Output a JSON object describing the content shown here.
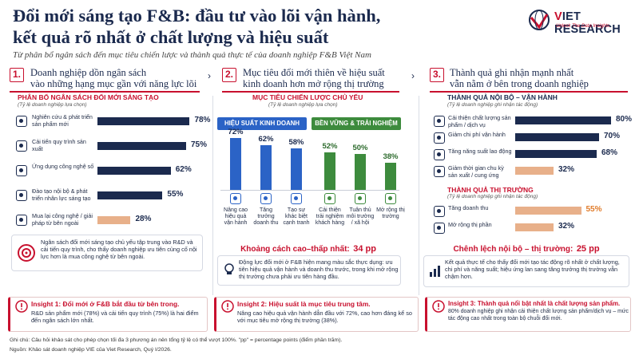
{
  "header": {
    "title_line1": "Đổi mới sáng tạo F&B: đầu tư vào lõi vận hành,",
    "title_line2": "kết quả rõ nhất ở chất lượng và hiệu suất",
    "subtitle": "Từ phân bổ ngân sách đến mục tiêu chiến lược và thành quả thực tế của doanh nghiệp F&B Việt Nam",
    "logo_v": "V",
    "logo_text": "IET RESEARCH",
    "logo_tagline": "Unlock The Data Insights"
  },
  "sections": [
    {
      "num": "1.",
      "line1": "Doanh nghiệp dồn ngân sách",
      "line2": "vào những hạng mục gần với năng lực lõi"
    },
    {
      "num": "2.",
      "line1": "Mục tiêu đổi mới thiên về hiệu suất",
      "line2": "kinh doanh hơn mở rộng thị trường"
    },
    {
      "num": "3.",
      "line1": "Thành quả ghi nhận mạnh nhất",
      "line2": "vẫn nằm ở bên trong doanh nghiệp"
    }
  ],
  "colors": {
    "navy": "#1b2a4e",
    "red": "#c8102e",
    "blue": "#2b63c6",
    "green": "#3d8b3d",
    "orange": "#e07b2a"
  },
  "chart_data": [
    {
      "type": "bar",
      "orientation": "horizontal",
      "title": "PHÂN BỔ NGÂN SÁCH ĐỔI MỚI SÁNG TẠO",
      "note": "(Tỷ lệ doanh nghiệp lựa chọn)",
      "categories": [
        "Nghiên cứu & phát triển sản phẩm mới",
        "Cải tiến quy trình sản xuất",
        "Ứng dụng công nghệ số",
        "Đào tạo nội bộ & phát triển nhân lực sáng tạo",
        "Mua lại công nghệ / giải pháp từ bên ngoài"
      ],
      "values": [
        78,
        75,
        62,
        55,
        28
      ],
      "labels": [
        "78%",
        "75%",
        "62%",
        "55%",
        "28%"
      ],
      "icons": [
        "flask-icon",
        "gear-icon",
        "network-icon",
        "training-icon",
        "handshake-icon"
      ],
      "xlim": [
        0,
        100
      ]
    },
    {
      "type": "bar",
      "orientation": "vertical",
      "title": "MỤC TIÊU CHIẾN LƯỢC CHỦ YẾU",
      "note": "(Tỷ lệ doanh nghiệp lựa chọn)",
      "groups": [
        {
          "name": "HIỆU SUẤT KINH DOANH",
          "color": "#2b63c6",
          "categories": [
            "Nâng cao hiệu quả vận hành",
            "Tăng trưởng doanh thu",
            "Tạo sự khác biệt cạnh tranh"
          ],
          "values": [
            72,
            62,
            58
          ],
          "labels": [
            "72%",
            "62%",
            "58%"
          ]
        },
        {
          "name": "BỀN VỮNG & TRẢI NGHIỆM",
          "color": "#3d8b3d",
          "categories": [
            "Cải thiện trải nghiệm khách hàng",
            "Tuân thủ môi trường / xã hội",
            "Mở rộng thị trường"
          ],
          "values": [
            52,
            50,
            38
          ],
          "labels": [
            "52%",
            "50%",
            "38%"
          ]
        }
      ],
      "ylim": [
        0,
        100
      ]
    },
    {
      "type": "bar",
      "orientation": "horizontal",
      "title": "THÀNH QUẢ NỘI BỘ – VẬN HÀNH",
      "note": "(Tỷ lệ doanh nghiệp ghi nhận tác động)",
      "categories": [
        "Cải thiện chất lượng sản phẩm / dịch vụ",
        "Giảm chi phí vận hành",
        "Tăng năng suất lao động",
        "Giảm thời gian chu kỳ sản xuất / cung ứng"
      ],
      "values": [
        80,
        70,
        68,
        32
      ],
      "labels": [
        "80%",
        "70%",
        "68%",
        "32%"
      ],
      "icons": [
        "quality-icon",
        "cost-icon",
        "productivity-icon",
        "clock-icon"
      ],
      "xlim": [
        0,
        100
      ]
    },
    {
      "type": "bar",
      "orientation": "horizontal",
      "title": "THÀNH QUẢ THỊ TRƯỜNG",
      "note": "(Tỷ lệ doanh nghiệp ghi nhận tác động)",
      "categories": [
        "Tăng doanh thu",
        "Mở rộng thị phần"
      ],
      "values": [
        55,
        32
      ],
      "labels": [
        "55%",
        "32%"
      ],
      "icons": [
        "revenue-icon",
        "share-icon"
      ],
      "xlim": [
        0,
        100
      ]
    }
  ],
  "panel1": {
    "note_text": "Ngân sách đổi mới sáng tạo chủ yếu tập trung vào R&D và cải tiến quy trình, cho thấy doanh nghiệp ưu tiên củng cố nội lực hơn là mua công nghệ từ bên ngoài."
  },
  "panel2": {
    "highlight_label": "Khoảng cách cao–thấp nhất:",
    "highlight_value": "34 pp",
    "note_text": "Động lực đổi mới ở F&B hiện mang màu sắc thực dụng: ưu tiên hiệu quả vận hành và doanh thu trước, trong khi mở rộng thị trường chưa phải ưu tiên hàng đầu."
  },
  "panel3": {
    "highlight_label": "Chênh lệch nội bộ – thị trường:",
    "highlight_value": "25 pp",
    "note_text": "Kết quả thực tế cho thấy đổi mới tạo tác động rõ nhất ở chất lượng, chi phí và năng suất; hiệu ứng lan sang tăng trưởng thị trường vẫn chậm hơn."
  },
  "insights": [
    {
      "title": "Insight 1: Đổi mới ở F&B bắt đầu từ bên trong.",
      "body": "R&D sản phẩm mới (78%) và cải tiến quy trình (75%) là hai điểm đến ngân sách lớn nhất."
    },
    {
      "title": "Insight 2: Hiệu suất là mục tiêu trung tâm.",
      "body": "Nâng cao hiệu quả vận hành dẫn đầu với 72%, cao hơn đáng kể so với mục tiêu mở rộng thị trường (38%)."
    },
    {
      "title": "Insight 3: Thành quả nổi bật nhất là chất lượng sản phẩm.",
      "body": "80% doanh nghiệp ghi nhận cải thiện chất lượng sản phẩm/dịch vụ – mức tác động cao nhất trong toàn bộ chuỗi đổi mới."
    }
  ],
  "footer": {
    "note": "Ghi chú: Câu hỏi khảo sát cho phép chọn tối đa 3 phương án nên tổng tỷ lệ có thể vượt 100%. \"pp\" = percentage points (điểm phần trăm).",
    "source": "Nguồn: Khảo sát doanh nghiệp VIE của Viet Research, Quý I/2026."
  }
}
